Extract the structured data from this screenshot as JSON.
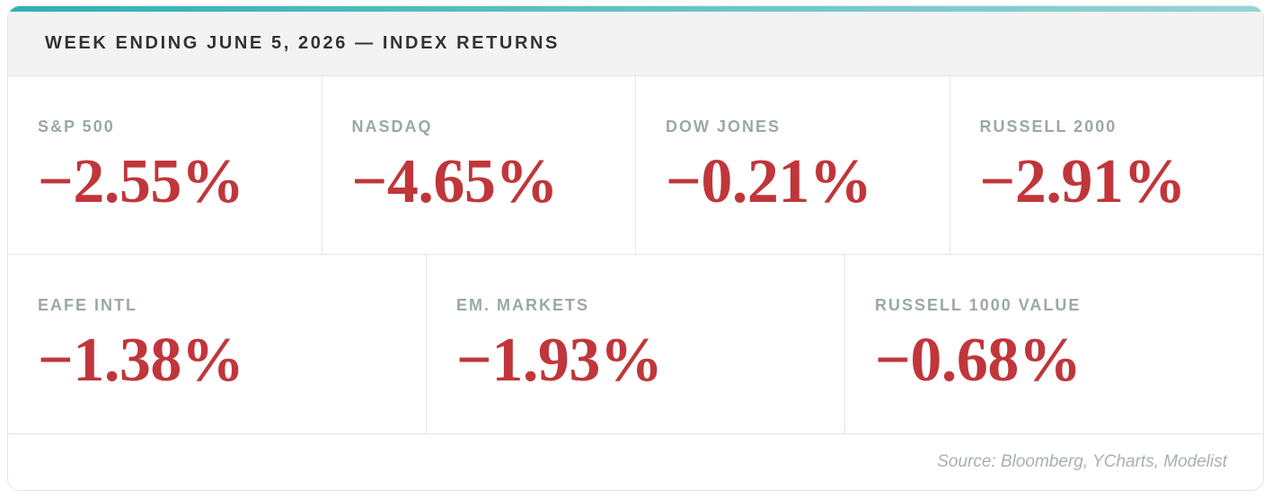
{
  "header": {
    "title": "WEEK ENDING JUNE 5, 2026 — INDEX RETURNS"
  },
  "rows": [
    [
      {
        "label": "S&P 500",
        "value": "−2.55%"
      },
      {
        "label": "NASDAQ",
        "value": "−4.65%"
      },
      {
        "label": "DOW JONES",
        "value": "−0.21%"
      },
      {
        "label": "RUSSELL 2000",
        "value": "−2.91%"
      }
    ],
    [
      {
        "label": "EAFE INTL",
        "value": "−1.38%"
      },
      {
        "label": "EM. MARKETS",
        "value": "−1.93%"
      },
      {
        "label": "RUSSELL 1000 VALUE",
        "value": "−0.68%"
      }
    ]
  ],
  "footer": {
    "source": "Source: Bloomberg, YCharts, Modelist"
  }
}
